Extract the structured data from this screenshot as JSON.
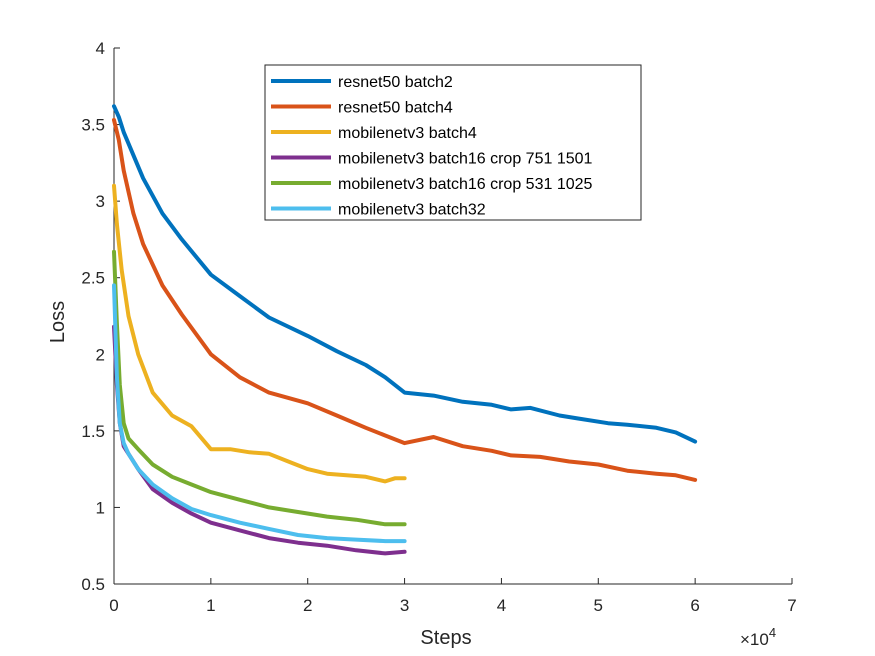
{
  "chart_data": {
    "type": "line",
    "xlabel": "Steps",
    "ylabel": "Loss",
    "x_multiplier_label": "×10",
    "x_multiplier_exponent": "4",
    "x_scale": 10000,
    "xlim": [
      0,
      7
    ],
    "ylim": [
      0.5,
      4
    ],
    "xticks": [
      0,
      1,
      2,
      3,
      4,
      5,
      6,
      7
    ],
    "yticks": [
      0.5,
      1,
      1.5,
      2,
      2.5,
      3,
      3.5,
      4
    ],
    "grid": false,
    "legend_position": "top",
    "series": [
      {
        "name": "resnet50 batch2",
        "color": "#0072BD",
        "x": [
          0,
          0.05,
          0.1,
          0.2,
          0.3,
          0.5,
          0.7,
          1.0,
          1.3,
          1.6,
          2.0,
          2.3,
          2.6,
          2.8,
          3.0,
          3.3,
          3.6,
          3.9,
          4.1,
          4.3,
          4.6,
          4.8,
          5.1,
          5.3,
          5.6,
          5.8,
          6.0
        ],
        "y": [
          3.62,
          3.55,
          3.45,
          3.3,
          3.15,
          2.92,
          2.75,
          2.52,
          2.38,
          2.24,
          2.12,
          2.02,
          1.93,
          1.85,
          1.75,
          1.73,
          1.69,
          1.67,
          1.64,
          1.65,
          1.6,
          1.58,
          1.55,
          1.54,
          1.52,
          1.49,
          1.43
        ]
      },
      {
        "name": "resnet50 batch4",
        "color": "#D95319",
        "x": [
          0,
          0.05,
          0.1,
          0.2,
          0.3,
          0.5,
          0.7,
          1.0,
          1.3,
          1.6,
          2.0,
          2.3,
          2.6,
          2.8,
          3.0,
          3.3,
          3.6,
          3.9,
          4.1,
          4.4,
          4.7,
          5.0,
          5.3,
          5.6,
          5.8,
          6.0
        ],
        "y": [
          3.53,
          3.4,
          3.2,
          2.92,
          2.72,
          2.45,
          2.26,
          2.0,
          1.85,
          1.75,
          1.68,
          1.6,
          1.52,
          1.47,
          1.42,
          1.46,
          1.4,
          1.37,
          1.34,
          1.33,
          1.3,
          1.28,
          1.24,
          1.22,
          1.21,
          1.18
        ]
      },
      {
        "name": "mobilenetv3 batch4",
        "color": "#EDB120",
        "x": [
          0,
          0.03,
          0.08,
          0.15,
          0.25,
          0.4,
          0.6,
          0.8,
          1.0,
          1.2,
          1.4,
          1.6,
          1.8,
          2.0,
          2.2,
          2.4,
          2.6,
          2.8,
          2.9,
          3.0
        ],
        "y": [
          3.1,
          2.85,
          2.55,
          2.25,
          2.0,
          1.75,
          1.6,
          1.53,
          1.38,
          1.38,
          1.36,
          1.35,
          1.3,
          1.25,
          1.22,
          1.21,
          1.2,
          1.17,
          1.19,
          1.19
        ]
      },
      {
        "name": "mobilenetv3 batch16 crop 751 1501",
        "color": "#7E2F8E",
        "x": [
          0,
          0.03,
          0.06,
          0.1,
          0.15,
          0.25,
          0.4,
          0.6,
          0.8,
          1.0,
          1.3,
          1.6,
          1.9,
          2.2,
          2.5,
          2.8,
          3.0
        ],
        "y": [
          2.18,
          1.8,
          1.55,
          1.4,
          1.35,
          1.25,
          1.12,
          1.03,
          0.96,
          0.9,
          0.85,
          0.8,
          0.77,
          0.75,
          0.72,
          0.7,
          0.71
        ]
      },
      {
        "name": "mobilenetv3 batch16 crop 531 1025",
        "color": "#77AC30",
        "x": [
          0,
          0.03,
          0.06,
          0.1,
          0.15,
          0.25,
          0.4,
          0.6,
          0.8,
          1.0,
          1.3,
          1.6,
          1.9,
          2.2,
          2.5,
          2.8,
          3.0
        ],
        "y": [
          2.67,
          2.2,
          1.8,
          1.55,
          1.45,
          1.38,
          1.28,
          1.2,
          1.15,
          1.1,
          1.05,
          1.0,
          0.97,
          0.94,
          0.92,
          0.89,
          0.89
        ]
      },
      {
        "name": "mobilenetv3 batch32",
        "color": "#4DBEEE",
        "x": [
          0,
          0.03,
          0.06,
          0.1,
          0.15,
          0.25,
          0.4,
          0.6,
          0.8,
          1.0,
          1.3,
          1.6,
          1.9,
          2.2,
          2.5,
          2.8,
          3.0
        ],
        "y": [
          2.45,
          1.85,
          1.55,
          1.42,
          1.35,
          1.25,
          1.15,
          1.06,
          0.99,
          0.95,
          0.9,
          0.86,
          0.82,
          0.8,
          0.79,
          0.78,
          0.78
        ]
      }
    ]
  }
}
